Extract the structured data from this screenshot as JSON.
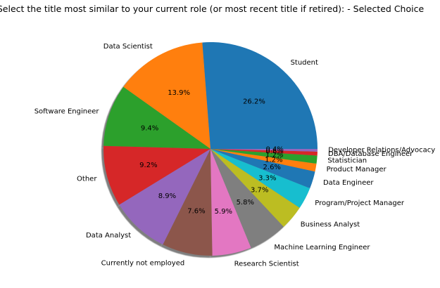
{
  "chart_data": {
    "type": "pie",
    "title": "Select the title most similar to your current role (or most recent title if retired): - Selected Choice",
    "start_angle_deg": 0,
    "direction": "counterclockwise",
    "shadow": true,
    "slices": [
      {
        "label": "Student",
        "pct": 26.2,
        "pct_label": "26.2%",
        "color": "#1f77b4"
      },
      {
        "label": "Data Scientist",
        "pct": 13.9,
        "pct_label": "13.9%",
        "color": "#ff7f0e"
      },
      {
        "label": "Software Engineer",
        "pct": 9.4,
        "pct_label": "9.4%",
        "color": "#2ca02c"
      },
      {
        "label": "Other",
        "pct": 9.2,
        "pct_label": "9.2%",
        "color": "#d62728"
      },
      {
        "label": "Data Analyst",
        "pct": 8.9,
        "pct_label": "8.9%",
        "color": "#9467bd"
      },
      {
        "label": "Currently not employed",
        "pct": 7.6,
        "pct_label": "7.6%",
        "color": "#8c564b"
      },
      {
        "label": "Research Scientist",
        "pct": 5.9,
        "pct_label": "5.9%",
        "color": "#e377c2"
      },
      {
        "label": "Machine Learning Engineer",
        "pct": 5.8,
        "pct_label": "5.8%",
        "color": "#7f7f7f"
      },
      {
        "label": "Business Analyst",
        "pct": 3.7,
        "pct_label": "3.7%",
        "color": "#bcbd22"
      },
      {
        "label": "Program/Project Manager",
        "pct": 3.3,
        "pct_label": "3.3%",
        "color": "#17becf"
      },
      {
        "label": "Data Engineer",
        "pct": 2.6,
        "pct_label": "2.6%",
        "color": "#1f77b4"
      },
      {
        "label": "Product Manager",
        "pct": 1.2,
        "pct_label": "1.2%",
        "color": "#ff7f0e"
      },
      {
        "label": "Statistician",
        "pct": 1.2,
        "pct_label": "1.2%",
        "color": "#2ca02c"
      },
      {
        "label": "DBA/Database Engineer",
        "pct": 0.6,
        "pct_label": "0.6%",
        "color": "#d62728"
      },
      {
        "label": "Developer Relations/Advocacy",
        "pct": 0.4,
        "pct_label": "0.4%",
        "color": "#9467bd"
      }
    ]
  }
}
